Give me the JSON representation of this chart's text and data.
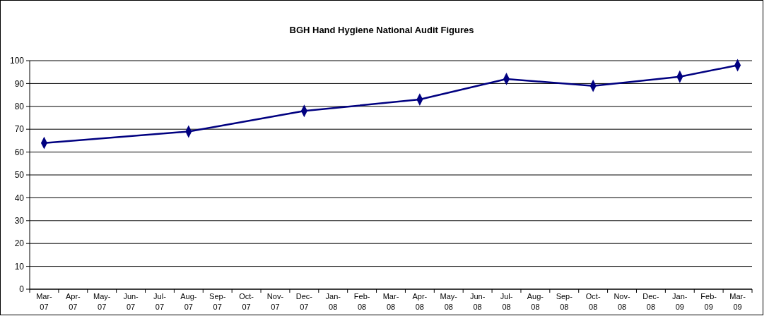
{
  "chart_data": {
    "type": "line",
    "title": "BGH Hand Hygiene National Audit Figures",
    "categories": [
      "Mar-07",
      "Apr-07",
      "May-07",
      "Jun-07",
      "Jul-07",
      "Aug-07",
      "Sep-07",
      "Oct-07",
      "Nov-07",
      "Dec-07",
      "Jan-08",
      "Feb-08",
      "Mar-08",
      "Apr-08",
      "May-08",
      "Jun-08",
      "Jul-08",
      "Aug-08",
      "Sep-08",
      "Oct-08",
      "Nov-08",
      "Dec-08",
      "Jan-09",
      "Feb-09",
      "Mar-09"
    ],
    "series": [
      {
        "color": "#000080",
        "values": [
          64,
          null,
          null,
          null,
          null,
          69,
          null,
          null,
          null,
          78,
          null,
          null,
          null,
          83,
          null,
          null,
          92,
          null,
          null,
          89,
          null,
          null,
          93,
          null,
          98
        ]
      }
    ],
    "ylim": [
      0,
      100
    ],
    "yticks": [
      0,
      10,
      20,
      30,
      40,
      50,
      60,
      70,
      80,
      90,
      100
    ],
    "grid": "y",
    "marker": "diamond",
    "line_style": "solid"
  }
}
